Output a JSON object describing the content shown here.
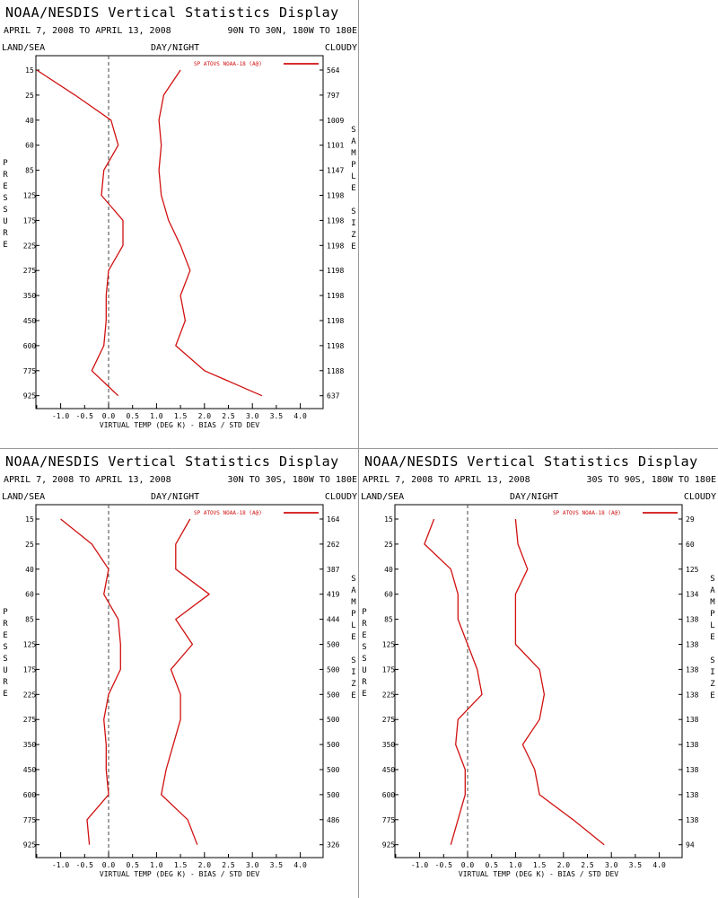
{
  "header": {
    "title": "NOAA/NESDIS Vertical Statistics Display",
    "dates": "APRIL 7, 2008 TO APRIL 13, 2008",
    "land_sea": "LAND/SEA",
    "day_night": "DAY/NIGHT",
    "cloudy": "CLOUDY",
    "pressure_label": "PRESSURE",
    "sample_label": "SAMPLE SIZE"
  },
  "colors": {
    "series": "#d11010",
    "zero": "#444444",
    "axis": "#000000"
  },
  "chart_data": [
    {
      "type": "line",
      "region": "90N TO 30N, 180W TO 180E",
      "legend": "SP ATOVS NOAA-18 (A@)",
      "xlabel": "VIRTUAL TEMP (DEG K) - BIAS / STD DEV",
      "xlim": [
        -1.5,
        4.5
      ],
      "xticks": [
        "-1.0",
        "-0.5",
        "0.0",
        "0.5",
        "1.0",
        "1.5",
        "2.0",
        "2.5",
        "3.0",
        "3.5",
        "4.0"
      ],
      "pressure_levels": [
        "15",
        "25",
        "40",
        "60",
        "85",
        "125",
        "175",
        "225",
        "275",
        "350",
        "450",
        "600",
        "775",
        "925"
      ],
      "sample_size": [
        "564",
        "797",
        "1009",
        "1101",
        "1147",
        "1198",
        "1198",
        "1198",
        "1198",
        "1198",
        "1198",
        "1198",
        "1188",
        "637"
      ],
      "series": [
        {
          "values": [
            -1.5,
            -0.7,
            0.05,
            0.2,
            -0.1,
            -0.15,
            0.3,
            0.3,
            0.0,
            -0.05,
            -0.05,
            -0.1,
            -0.35,
            0.2
          ]
        },
        {
          "values": [
            1.5,
            1.15,
            1.05,
            1.1,
            1.05,
            1.1,
            1.25,
            1.5,
            1.7,
            1.5,
            1.6,
            1.4,
            2.0,
            3.2
          ]
        }
      ]
    },
    {
      "type": "line",
      "region": "30N TO 30S, 180W TO 180E",
      "legend": "SP ATOVS NOAA-18 (A@)",
      "xlabel": "VIRTUAL TEMP (DEG K) - BIAS / STD DEV",
      "xlim": [
        -1.5,
        4.5
      ],
      "xticks": [
        "-1.0",
        "-0.5",
        "0.0",
        "0.5",
        "1.0",
        "1.5",
        "2.0",
        "2.5",
        "3.0",
        "3.5",
        "4.0"
      ],
      "pressure_levels": [
        "15",
        "25",
        "40",
        "60",
        "85",
        "125",
        "175",
        "225",
        "275",
        "350",
        "450",
        "600",
        "775",
        "925"
      ],
      "sample_size": [
        "164",
        "262",
        "387",
        "419",
        "444",
        "500",
        "500",
        "500",
        "500",
        "500",
        "500",
        "500",
        "486",
        "326"
      ],
      "series": [
        {
          "values": [
            -1.0,
            -0.35,
            0.0,
            -0.1,
            0.2,
            0.25,
            0.25,
            0.0,
            -0.1,
            -0.05,
            -0.05,
            0.0,
            -0.45,
            -0.4
          ]
        },
        {
          "values": [
            1.7,
            1.4,
            1.4,
            2.1,
            1.4,
            1.75,
            1.3,
            1.5,
            1.5,
            1.35,
            1.2,
            1.1,
            1.65,
            1.85
          ]
        }
      ]
    },
    {
      "type": "line",
      "region": "30S TO 90S, 180W TO 180E",
      "legend": "SP ATOVS NOAA-18 (A@)",
      "xlabel": "VIRTUAL TEMP (DEG K) - BIAS / STD DEV",
      "xlim": [
        -1.5,
        4.5
      ],
      "xticks": [
        "-1.0",
        "-0.5",
        "0.0",
        "0.5",
        "1.0",
        "1.5",
        "2.0",
        "2.5",
        "3.0",
        "3.5",
        "4.0"
      ],
      "pressure_levels": [
        "15",
        "25",
        "40",
        "60",
        "85",
        "125",
        "175",
        "225",
        "275",
        "350",
        "450",
        "600",
        "775",
        "925"
      ],
      "sample_size": [
        "29",
        "60",
        "125",
        "134",
        "138",
        "138",
        "138",
        "138",
        "138",
        "138",
        "138",
        "138",
        "138",
        "94"
      ],
      "series": [
        {
          "values": [
            -0.7,
            -0.9,
            -0.35,
            -0.2,
            -0.2,
            0.0,
            0.2,
            0.3,
            -0.2,
            -0.25,
            -0.05,
            -0.05,
            -0.2,
            -0.35
          ]
        },
        {
          "values": [
            1.0,
            1.05,
            1.25,
            1.0,
            1.0,
            1.0,
            1.5,
            1.6,
            1.5,
            1.15,
            1.4,
            1.5,
            2.2,
            2.85
          ]
        }
      ]
    }
  ]
}
